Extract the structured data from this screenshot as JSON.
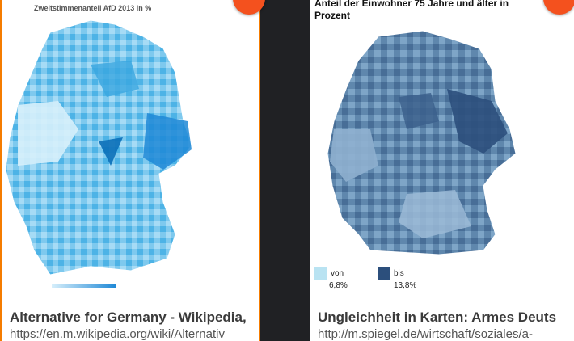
{
  "left_card": {
    "map_title": "Zweitstimmenanteil AfD 2013 in %",
    "result_title": "Alternative for Germany - Wikipedia,",
    "result_url": "https://en.m.wikipedia.org/wiki/Alternativ",
    "accent": "#f57c00"
  },
  "right_card": {
    "map_title_line1": "Anteil der Einwohner 75 Jahre und älter in",
    "map_title_line2": "Prozent",
    "legend": {
      "from_label": "von",
      "from_value": "6,8%",
      "to_label": "bis",
      "to_value": "13,8%",
      "from_color": "#b9e3f2",
      "to_color": "#2c4f7c"
    },
    "result_title": "Ungleichheit in Karten: Armes Deuts",
    "result_url": "http://m.spiegel.de/wirtschaft/soziales/a-"
  }
}
